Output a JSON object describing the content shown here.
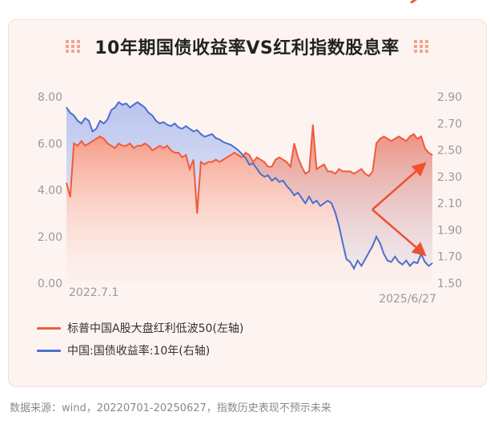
{
  "title": "10年期国债收益率VS红利指数股息率",
  "footer": "数据来源：wind，20220701-20250627，指数历史表现不预示未来",
  "colors": {
    "dividend": "#f25a38",
    "bond": "#4a6fd0",
    "arrow": "#f0502d"
  },
  "legend": [
    {
      "label": "标普中国A股大盘红利低波50(左轴)",
      "color": "#f25a38"
    },
    {
      "label": "中国:国债收益率:10年(右轴)",
      "color": "#4a6fd0"
    }
  ],
  "chart_data": {
    "type": "line",
    "x_start_label": "2022.7.1",
    "x_end_label": "2025/6/27",
    "left_axis": {
      "ticks": [
        "8.00",
        "6.00",
        "4.00",
        "2.00",
        "0.00"
      ],
      "ylim": [
        0,
        8
      ]
    },
    "right_axis": {
      "ticks": [
        "2.90",
        "2.70",
        "2.50",
        "2.30",
        "2.10",
        "1.90",
        "1.70",
        "1.50"
      ],
      "ylim": [
        1.5,
        2.9
      ]
    },
    "series": [
      {
        "name": "标普中国A股大盘红利低波50(左轴)",
        "axis": "left",
        "values": [
          4.3,
          3.7,
          6.0,
          5.9,
          6.1,
          5.9,
          6.0,
          6.1,
          6.2,
          6.3,
          6.2,
          6.0,
          5.9,
          5.8,
          6.0,
          5.9,
          5.9,
          6.0,
          5.8,
          5.9,
          5.9,
          6.0,
          5.9,
          5.7,
          5.8,
          5.9,
          5.8,
          5.9,
          5.7,
          5.6,
          5.6,
          5.4,
          5.5,
          4.9,
          5.3,
          3.0,
          5.2,
          5.1,
          5.2,
          5.2,
          5.3,
          5.2,
          5.3,
          5.4,
          5.5,
          5.6,
          5.5,
          5.4,
          5.6,
          5.5,
          5.2,
          5.4,
          5.3,
          5.2,
          5.0,
          5.0,
          5.3,
          5.4,
          5.3,
          5.2,
          5.0,
          6.0,
          5.4,
          5.0,
          4.7,
          4.8,
          6.8,
          4.9,
          5.0,
          5.1,
          4.8,
          4.8,
          4.7,
          4.9,
          4.8,
          4.8,
          4.8,
          4.7,
          4.8,
          4.9,
          4.7,
          4.6,
          4.8,
          6.0,
          6.2,
          6.3,
          6.2,
          6.1,
          6.2,
          6.3,
          6.2,
          6.1,
          6.3,
          6.4,
          6.2,
          6.3,
          5.8,
          5.6,
          5.5
        ]
      },
      {
        "name": "中国:国债收益率:10年(右轴)",
        "axis": "right",
        "values": [
          2.82,
          2.78,
          2.76,
          2.72,
          2.7,
          2.74,
          2.72,
          2.64,
          2.66,
          2.72,
          2.7,
          2.73,
          2.8,
          2.82,
          2.86,
          2.84,
          2.85,
          2.82,
          2.84,
          2.86,
          2.84,
          2.82,
          2.78,
          2.76,
          2.72,
          2.7,
          2.71,
          2.69,
          2.68,
          2.7,
          2.67,
          2.66,
          2.68,
          2.66,
          2.64,
          2.65,
          2.62,
          2.6,
          2.61,
          2.62,
          2.59,
          2.58,
          2.56,
          2.55,
          2.54,
          2.52,
          2.5,
          2.47,
          2.44,
          2.39,
          2.4,
          2.36,
          2.32,
          2.3,
          2.31,
          2.27,
          2.29,
          2.26,
          2.27,
          2.23,
          2.2,
          2.16,
          2.18,
          2.14,
          2.1,
          2.15,
          2.1,
          2.12,
          2.08,
          2.1,
          2.12,
          2.1,
          2.03,
          1.93,
          1.8,
          1.68,
          1.66,
          1.61,
          1.67,
          1.63,
          1.68,
          1.73,
          1.78,
          1.85,
          1.8,
          1.72,
          1.67,
          1.66,
          1.7,
          1.66,
          1.64,
          1.67,
          1.63,
          1.66,
          1.65,
          1.72,
          1.66,
          1.63,
          1.65
        ]
      }
    ]
  }
}
